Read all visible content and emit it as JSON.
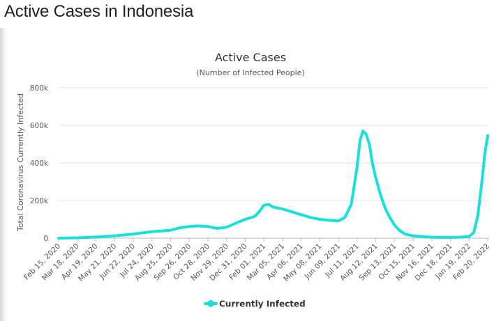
{
  "page": {
    "title": "Active Cases in Indonesia"
  },
  "chart_data": {
    "type": "line",
    "title": "Active Cases",
    "subtitle": "(Number of Infected People)",
    "ylabel": "Total Coronavirus Currently Infected",
    "xlabel": "",
    "ylim": [
      0,
      800000
    ],
    "yticks": [
      0,
      200000,
      400000,
      600000,
      800000
    ],
    "ytick_labels": [
      "0",
      "200k",
      "400k",
      "600k",
      "800k"
    ],
    "x_tick_labels": [
      "Feb 15, 2020",
      "Mar 18, 2020",
      "Apr 19, 2020",
      "May 21, 2020",
      "Jun 22, 2020",
      "Jul 24, 2020",
      "Aug 25, 2020",
      "Sep 26, 2020",
      "Oct 28, 2020",
      "Nov 29, 2020",
      "Dec 31, 2020",
      "Feb 01, 2021",
      "Mar 05, 2021",
      "Apr 06, 2021",
      "May 08, 2021",
      "Jun 09, 2021",
      "Jul 11, 2021",
      "Aug 12, 2021",
      "Sep 13, 2021",
      "Oct 15, 2021",
      "Nov 16, 2021",
      "Dec 18, 2021",
      "Jan 19, 2022",
      "Feb 20, 2022"
    ],
    "grid": true,
    "legend_position": "bottom-center",
    "series": [
      {
        "name": "Currently Infected",
        "color": "#1ae0dc",
        "x": [
          "Feb 15, 2020",
          "Mar 18, 2020",
          "Apr 19, 2020",
          "May 21, 2020",
          "Jun 22, 2020",
          "Jul 24, 2020",
          "Aug 25, 2020",
          "Sep 10, 2020",
          "Sep 26, 2020",
          "Oct 12, 2020",
          "Oct 28, 2020",
          "Nov 13, 2020",
          "Nov 29, 2020",
          "Dec 15, 2020",
          "Dec 31, 2020",
          "Jan 16, 2021",
          "Jan 24, 2021",
          "Feb 01, 2021",
          "Feb 09, 2021",
          "Feb 17, 2021",
          "Mar 05, 2021",
          "Mar 21, 2021",
          "Apr 06, 2021",
          "Apr 22, 2021",
          "May 08, 2021",
          "May 24, 2021",
          "Jun 09, 2021",
          "Jun 20, 2021",
          "Jul 01, 2021",
          "Jul 11, 2021",
          "Jul 16, 2021",
          "Jul 21, 2021",
          "Jul 26, 2021",
          "Aug 01, 2021",
          "Aug 06, 2021",
          "Aug 12, 2021",
          "Aug 20, 2021",
          "Aug 28, 2021",
          "Sep 05, 2021",
          "Sep 13, 2021",
          "Sep 22, 2021",
          "Oct 01, 2021",
          "Oct 15, 2021",
          "Oct 31, 2021",
          "Nov 16, 2021",
          "Dec 02, 2021",
          "Dec 18, 2021",
          "Jan 03, 2022",
          "Jan 19, 2022",
          "Jan 27, 2022",
          "Feb 03, 2022",
          "Feb 10, 2022",
          "Feb 15, 2022",
          "Feb 20, 2022"
        ],
        "values": [
          0,
          2000,
          6000,
          12000,
          22000,
          35000,
          42000,
          55000,
          62000,
          65000,
          62000,
          52000,
          58000,
          80000,
          100000,
          115000,
          140000,
          175000,
          180000,
          165000,
          155000,
          140000,
          125000,
          110000,
          100000,
          95000,
          92000,
          110000,
          180000,
          380000,
          520000,
          570000,
          555000,
          500000,
          400000,
          320000,
          230000,
          160000,
          110000,
          70000,
          40000,
          22000,
          12000,
          8000,
          5000,
          4000,
          4000,
          5000,
          8000,
          30000,
          120000,
          300000,
          450000,
          545000
        ]
      }
    ]
  }
}
